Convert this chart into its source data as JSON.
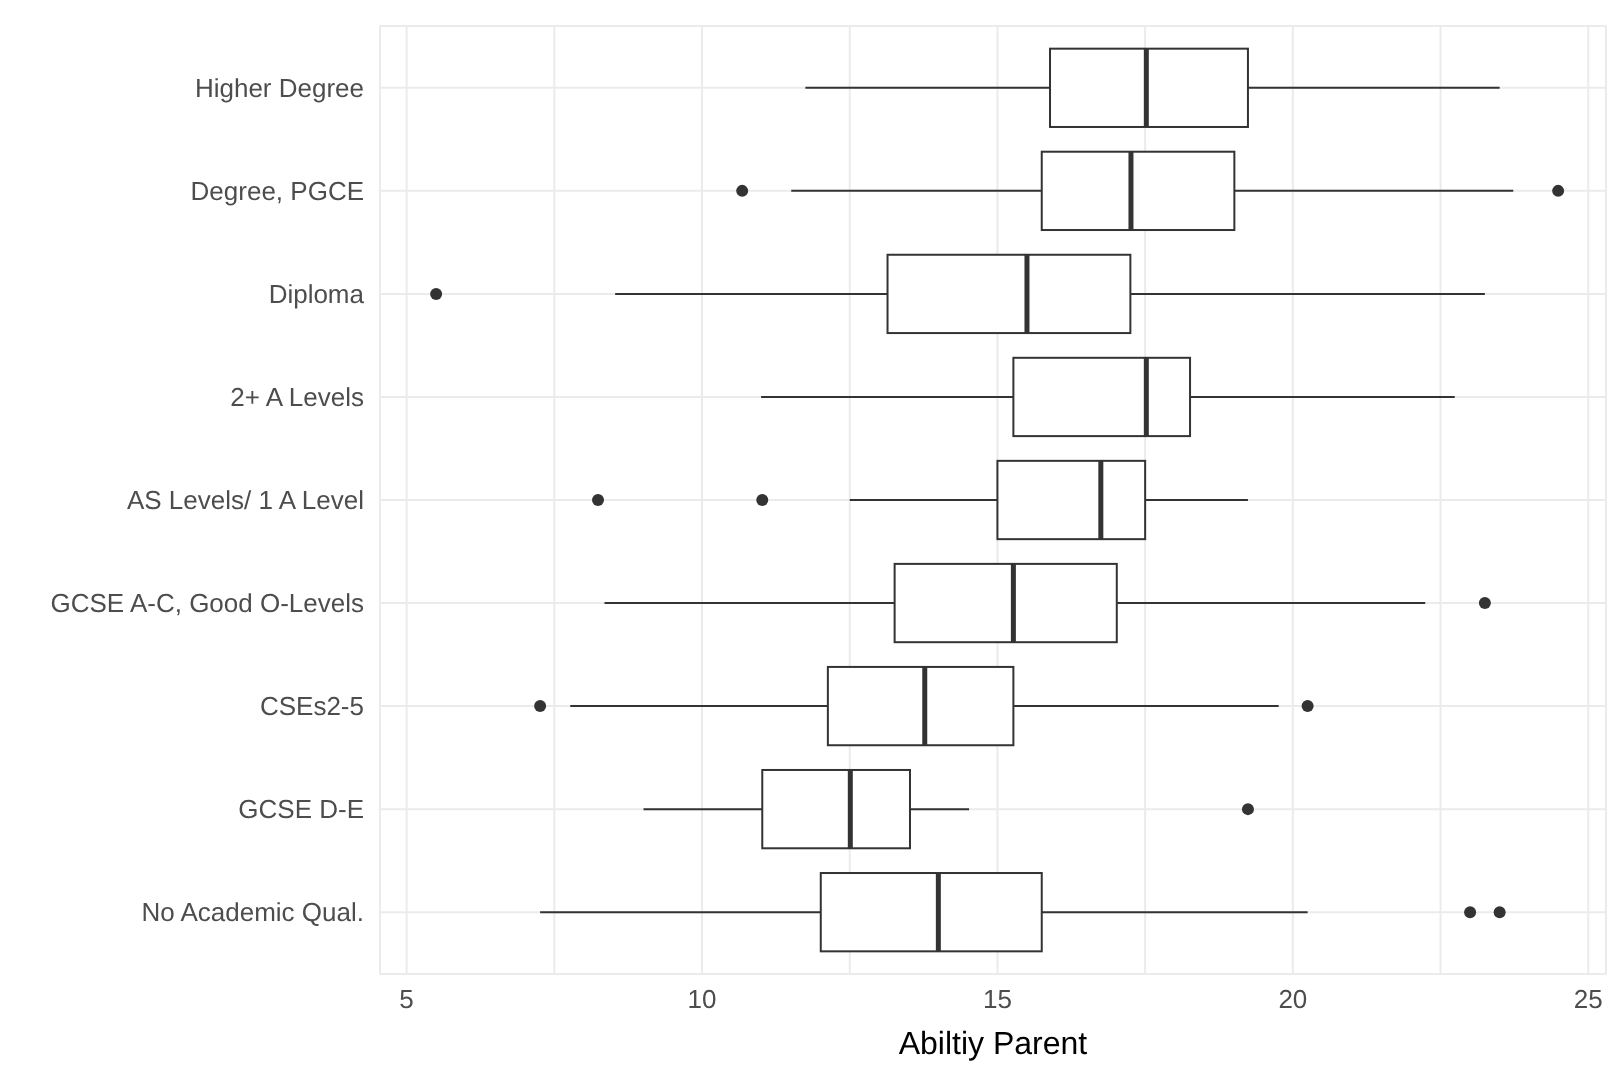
{
  "chart_data": {
    "type": "box",
    "orientation": "horizontal",
    "xlabel": "Abiltiy Parent",
    "color": "#333333",
    "categories": [
      "Higher Degree",
      "Degree, PGCE",
      "Diploma",
      "2+ A Levels",
      "AS Levels/ 1 A Level",
      "GCSE A-C, Good O-Levels",
      "CSEs2-5",
      "GCSE D-E",
      "No Academic Qual."
    ],
    "boxes": [
      {
        "low": 11.75,
        "q1": 15.89,
        "median": 17.52,
        "q3": 19.24,
        "high": 23.5
      },
      {
        "low": 11.51,
        "q1": 15.75,
        "median": 17.26,
        "q3": 19.01,
        "high": 23.73,
        "outliers": [
          10.68,
          24.49
        ]
      },
      {
        "low": 8.53,
        "q1": 13.14,
        "median": 15.5,
        "q3": 17.25,
        "high": 23.25,
        "outliers": [
          5.5
        ]
      },
      {
        "low": 11.0,
        "q1": 15.27,
        "median": 17.52,
        "q3": 18.26,
        "high": 22.74
      },
      {
        "low": 12.5,
        "q1": 15.0,
        "median": 16.75,
        "q3": 17.5,
        "high": 19.24,
        "outliers": [
          8.24,
          11.02
        ]
      },
      {
        "low": 8.35,
        "q1": 13.26,
        "median": 15.27,
        "q3": 17.02,
        "high": 22.24,
        "outliers": [
          23.25
        ]
      },
      {
        "low": 7.77,
        "q1": 12.13,
        "median": 13.77,
        "q3": 15.27,
        "high": 19.76,
        "outliers": [
          7.26,
          20.25
        ]
      },
      {
        "low": 9.01,
        "q1": 11.02,
        "median": 12.51,
        "q3": 13.52,
        "high": 14.52,
        "outliers": [
          19.24
        ]
      },
      {
        "low": 7.26,
        "q1": 12.01,
        "median": 14.0,
        "q3": 15.75,
        "high": 20.25,
        "outliers": [
          23.0,
          23.5
        ]
      }
    ],
    "xlim": [
      4.55,
      25.3
    ],
    "xticks": [
      5,
      {
        "value": 7.5,
        "label": null
      },
      10,
      {
        "value": 12.5,
        "label": null
      },
      15,
      {
        "value": 17.5,
        "label": null
      },
      20,
      {
        "value": 22.5,
        "label": null
      },
      25
    ],
    "grid": true
  }
}
